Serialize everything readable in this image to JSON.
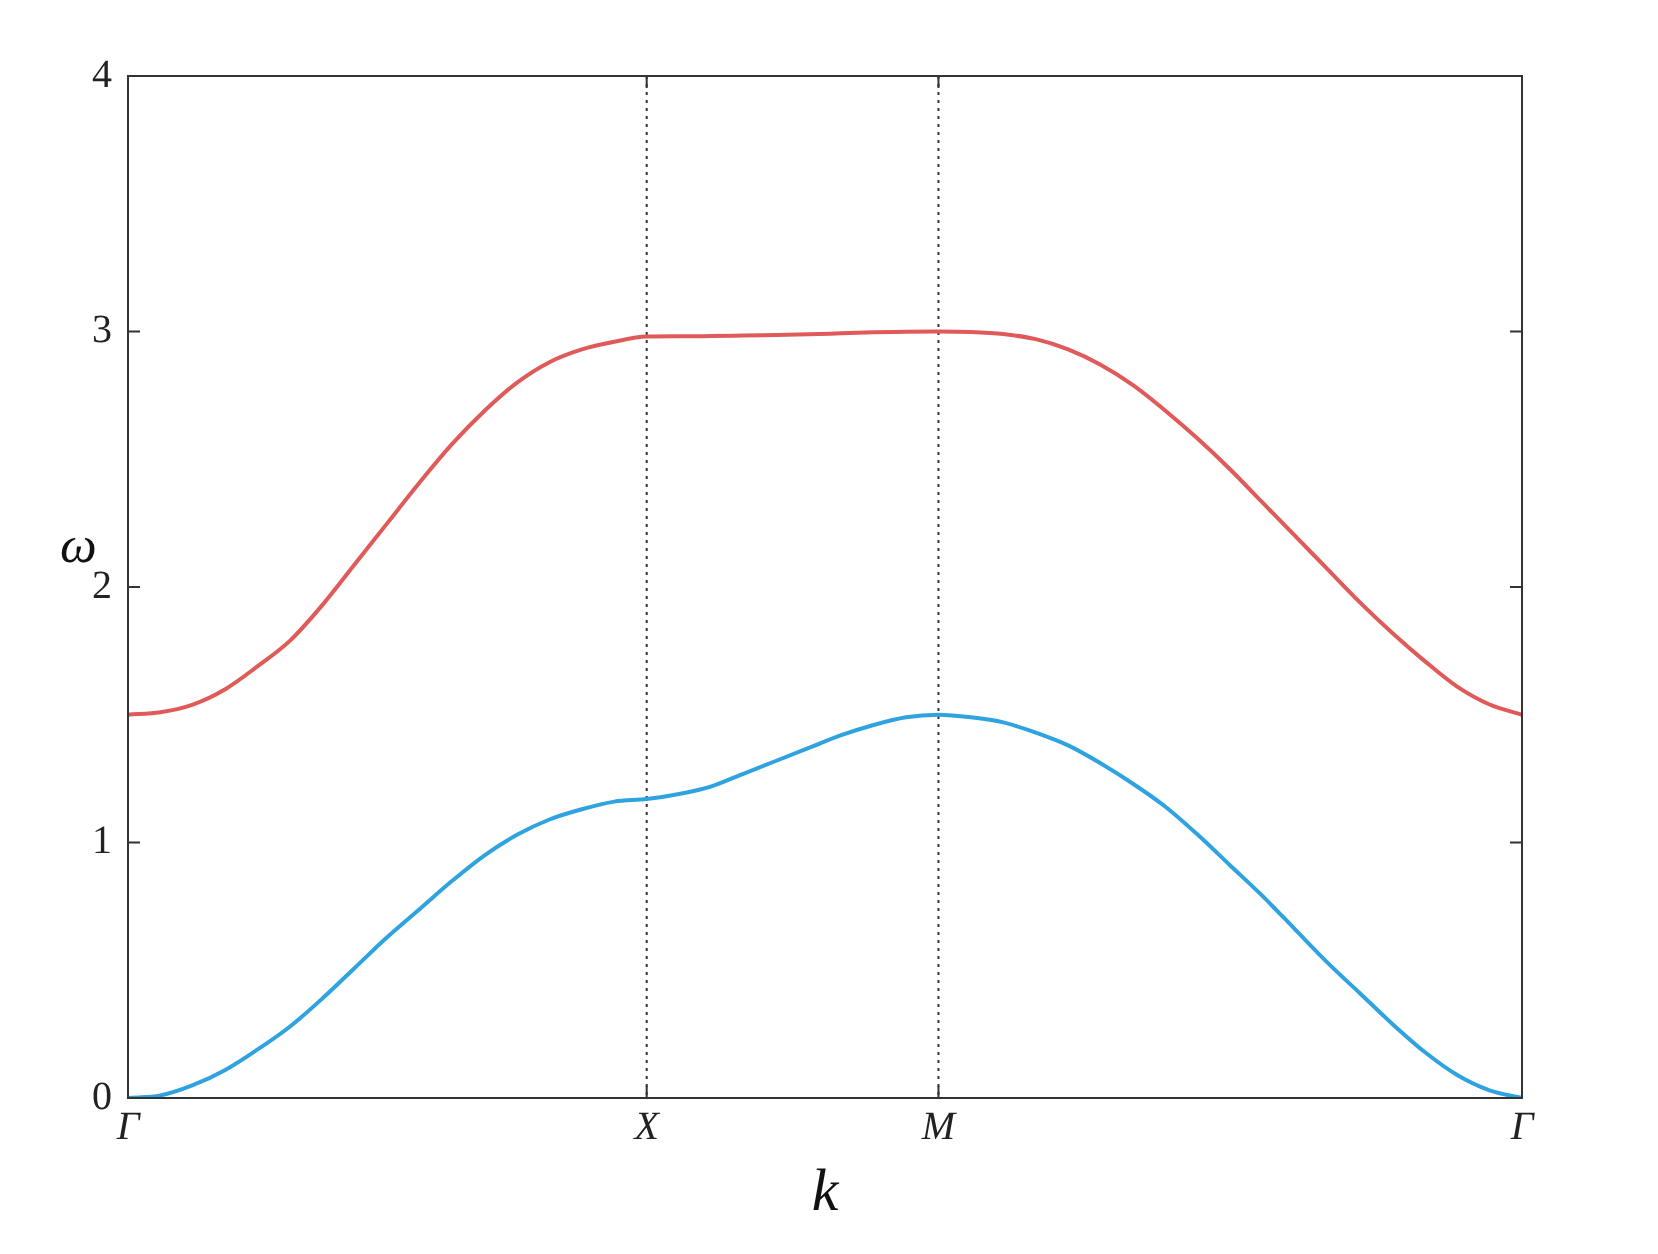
{
  "chart_data": {
    "type": "line",
    "xlabel": "k",
    "ylabel": "ω",
    "categories": [
      "Γ",
      null,
      null,
      null,
      null,
      null,
      null,
      null,
      null,
      null,
      null,
      null,
      null,
      null,
      null,
      null,
      "X",
      null,
      null,
      null,
      null,
      null,
      null,
      null,
      null,
      "M",
      null,
      null,
      null,
      null,
      null,
      null,
      null,
      null,
      null,
      null,
      null,
      null,
      null,
      null,
      null,
      null,
      null,
      "Γ"
    ],
    "ylim": [
      0,
      4
    ],
    "yticks": [
      0,
      1,
      2,
      3,
      4
    ],
    "grid": false,
    "legend": false,
    "marker": "none",
    "line_style": "solid",
    "ref_lines": [
      {
        "axis": "x",
        "value": "X",
        "line_style": "dotted",
        "color": "#333333"
      },
      {
        "axis": "x",
        "value": "M",
        "line_style": "dotted",
        "color": "#333333"
      }
    ],
    "series": [
      {
        "color": "#e05a5a",
        "values": [
          1.5,
          1.51,
          1.54,
          1.6,
          1.69,
          1.79,
          1.93,
          2.09,
          2.25,
          2.41,
          2.56,
          2.69,
          2.8,
          2.88,
          2.93,
          2.96,
          2.98,
          2.981,
          2.982,
          2.984,
          2.986,
          2.989,
          2.993,
          2.997,
          2.999,
          3,
          2.998,
          2.99,
          2.97,
          2.93,
          2.87,
          2.79,
          2.69,
          2.58,
          2.46,
          2.33,
          2.2,
          2.07,
          1.94,
          1.82,
          1.71,
          1.61,
          1.54,
          1.5
        ]
      },
      {
        "color": "#2ea3e0",
        "values": [
          0,
          0.01,
          0.05,
          0.11,
          0.19,
          0.28,
          0.39,
          0.51,
          0.63,
          0.74,
          0.85,
          0.95,
          1.03,
          1.09,
          1.13,
          1.16,
          1.17,
          1.19,
          1.22,
          1.27,
          1.32,
          1.37,
          1.42,
          1.46,
          1.49,
          1.5,
          1.49,
          1.47,
          1.43,
          1.38,
          1.31,
          1.23,
          1.14,
          1.03,
          0.91,
          0.79,
          0.66,
          0.53,
          0.41,
          0.29,
          0.18,
          0.09,
          0.03,
          0
        ]
      }
    ]
  }
}
